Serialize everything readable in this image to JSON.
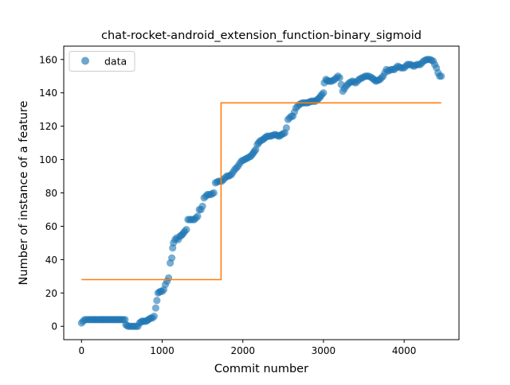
{
  "chart_data": {
    "type": "scatter",
    "title": "chat-rocket-android_extension_function-binary_sigmoid",
    "xlabel": "Commit number",
    "ylabel": "Number of instance of a feature",
    "xlim": [
      -220,
      4680
    ],
    "ylim": [
      -8,
      168
    ],
    "xticks": [
      0,
      1000,
      2000,
      3000,
      4000
    ],
    "yticks": [
      0,
      20,
      40,
      60,
      80,
      100,
      120,
      140,
      160
    ],
    "xtick_labels": [
      "0",
      "1000",
      "2000",
      "3000",
      "4000"
    ],
    "ytick_labels": [
      "0",
      "20",
      "40",
      "60",
      "80",
      "100",
      "120",
      "140",
      "160"
    ],
    "grid": false,
    "legend": {
      "position": "upper-left",
      "entries": [
        "data"
      ]
    },
    "series": [
      {
        "name": "data",
        "kind": "scatter",
        "color": "#1f77b4",
        "points": [
          [
            0,
            2
          ],
          [
            20,
            3
          ],
          [
            40,
            4
          ],
          [
            60,
            4
          ],
          [
            100,
            4
          ],
          [
            150,
            4
          ],
          [
            200,
            4
          ],
          [
            250,
            4
          ],
          [
            300,
            4
          ],
          [
            350,
            4
          ],
          [
            400,
            4
          ],
          [
            450,
            4
          ],
          [
            500,
            4
          ],
          [
            540,
            4
          ],
          [
            550,
            1
          ],
          [
            580,
            0
          ],
          [
            600,
            0
          ],
          [
            640,
            0
          ],
          [
            680,
            0
          ],
          [
            700,
            0
          ],
          [
            720,
            2
          ],
          [
            750,
            3
          ],
          [
            780,
            3
          ],
          [
            800,
            3
          ],
          [
            830,
            4
          ],
          [
            860,
            5
          ],
          [
            880,
            5
          ],
          [
            900,
            6
          ],
          [
            920,
            11
          ],
          [
            950,
            20
          ],
          [
            980,
            21
          ],
          [
            1000,
            21
          ],
          [
            1020,
            22
          ],
          [
            1040,
            25
          ],
          [
            1060,
            27
          ],
          [
            1080,
            29
          ],
          [
            1100,
            38
          ],
          [
            1120,
            41
          ],
          [
            1130,
            47
          ],
          [
            1140,
            50
          ],
          [
            1160,
            52
          ],
          [
            1180,
            53
          ],
          [
            1200,
            52
          ],
          [
            1220,
            54
          ],
          [
            1250,
            55
          ],
          [
            1280,
            57
          ],
          [
            1300,
            58
          ],
          [
            1320,
            64
          ],
          [
            1360,
            64
          ],
          [
            1400,
            64
          ],
          [
            1440,
            66
          ],
          [
            1460,
            70
          ],
          [
            1480,
            70
          ],
          [
            1500,
            72
          ],
          [
            1520,
            77
          ],
          [
            1560,
            79
          ],
          [
            1600,
            79
          ],
          [
            1640,
            80
          ],
          [
            1660,
            86
          ],
          [
            1700,
            87
          ],
          [
            1740,
            87
          ],
          [
            1780,
            89
          ],
          [
            1800,
            90
          ],
          [
            1820,
            90
          ],
          [
            1860,
            91
          ],
          [
            1900,
            94
          ],
          [
            1940,
            96
          ],
          [
            1980,
            99
          ],
          [
            2020,
            100
          ],
          [
            2060,
            101
          ],
          [
            2100,
            102
          ],
          [
            2130,
            104
          ],
          [
            2160,
            106
          ],
          [
            2180,
            109
          ],
          [
            2210,
            111
          ],
          [
            2250,
            112
          ],
          [
            2300,
            114
          ],
          [
            2340,
            114
          ],
          [
            2400,
            115
          ],
          [
            2450,
            114
          ],
          [
            2480,
            115
          ],
          [
            2520,
            116
          ],
          [
            2540,
            119
          ],
          [
            2560,
            124
          ],
          [
            2600,
            126
          ],
          [
            2620,
            126
          ],
          [
            2660,
            131
          ],
          [
            2700,
            133
          ],
          [
            2740,
            134
          ],
          [
            2800,
            134
          ],
          [
            2850,
            135
          ],
          [
            2900,
            135
          ],
          [
            2950,
            137
          ],
          [
            2980,
            139
          ],
          [
            3000,
            140
          ],
          [
            3010,
            146
          ],
          [
            3030,
            148
          ],
          [
            3060,
            147
          ],
          [
            3100,
            147
          ],
          [
            3140,
            148
          ],
          [
            3180,
            150
          ],
          [
            3200,
            149
          ],
          [
            3240,
            141
          ],
          [
            3280,
            144
          ],
          [
            3320,
            146
          ],
          [
            3360,
            147
          ],
          [
            3400,
            146
          ],
          [
            3440,
            148
          ],
          [
            3480,
            149
          ],
          [
            3520,
            150
          ],
          [
            3560,
            150
          ],
          [
            3600,
            149
          ],
          [
            3650,
            147
          ],
          [
            3700,
            148
          ],
          [
            3740,
            150
          ],
          [
            3780,
            154
          ],
          [
            3800,
            153
          ],
          [
            3840,
            154
          ],
          [
            3880,
            154
          ],
          [
            3920,
            156
          ],
          [
            3960,
            155
          ],
          [
            4000,
            155
          ],
          [
            4040,
            157
          ],
          [
            4080,
            157
          ],
          [
            4120,
            156
          ],
          [
            4160,
            157
          ],
          [
            4200,
            157
          ],
          [
            4240,
            159
          ],
          [
            4280,
            160
          ],
          [
            4320,
            160
          ],
          [
            4360,
            159
          ],
          [
            4380,
            157
          ],
          [
            4400,
            155
          ],
          [
            4420,
            152
          ],
          [
            4440,
            150
          ],
          [
            4460,
            150
          ]
        ]
      },
      {
        "name": "",
        "kind": "line",
        "color": "#ff7f0e",
        "points": [
          [
            0,
            28
          ],
          [
            1730,
            28
          ],
          [
            1730,
            134
          ],
          [
            4460,
            134
          ]
        ]
      }
    ]
  }
}
